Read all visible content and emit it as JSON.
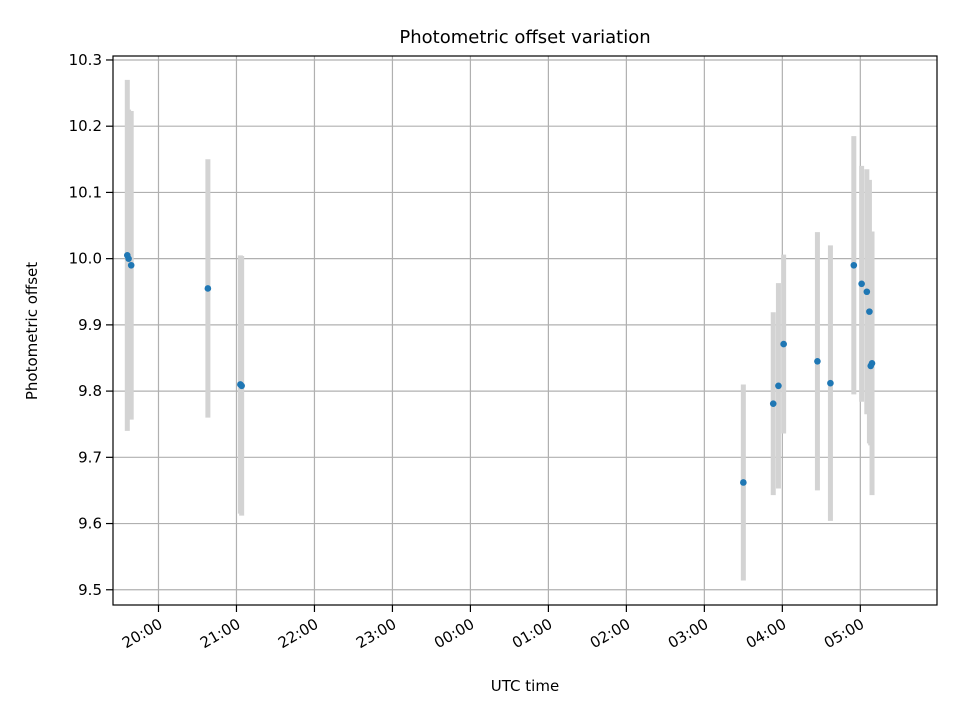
{
  "chart_data": {
    "type": "scatter",
    "title": "Photometric offset variation",
    "xlabel": "UTC time",
    "ylabel": "Photometric offset",
    "x_axis": "time",
    "xlim": [
      "19:25",
      "05:59"
    ],
    "ylim": [
      9.477,
      10.306
    ],
    "x_ticks": [
      "20:00",
      "21:00",
      "22:00",
      "23:00",
      "00:00",
      "01:00",
      "02:00",
      "03:00",
      "04:00",
      "05:00"
    ],
    "y_ticks": [
      9.5,
      9.6,
      9.7,
      9.8,
      9.9,
      10.0,
      10.1,
      10.2,
      10.3
    ],
    "y_tick_labels": [
      "9.5",
      "9.6",
      "9.7",
      "9.8",
      "9.9",
      "10.0",
      "10.1",
      "10.2",
      "10.3"
    ],
    "grid": true,
    "point_color": "#1f77b4",
    "errorbar_color": "#d3d3d3",
    "points": [
      {
        "time": "19:36",
        "y": 10.005,
        "yerr": 0.265
      },
      {
        "time": "19:37",
        "y": 10.0,
        "yerr": 0.225
      },
      {
        "time": "19:39",
        "y": 9.99,
        "yerr": 0.233
      },
      {
        "time": "20:38",
        "y": 9.955,
        "yerr": 0.195
      },
      {
        "time": "21:03",
        "y": 9.81,
        "yerr": 0.195
      },
      {
        "time": "21:04",
        "y": 9.808,
        "yerr": 0.196
      },
      {
        "time": "03:30",
        "y": 9.662,
        "yerr": 0.148
      },
      {
        "time": "03:53",
        "y": 9.781,
        "yerr": 0.138
      },
      {
        "time": "03:57",
        "y": 9.808,
        "yerr": 0.155
      },
      {
        "time": "04:01",
        "y": 9.871,
        "yerr": 0.135
      },
      {
        "time": "04:27",
        "y": 9.845,
        "yerr": 0.195
      },
      {
        "time": "04:37",
        "y": 9.812,
        "yerr": 0.208
      },
      {
        "time": "04:55",
        "y": 9.99,
        "yerr": 0.195
      },
      {
        "time": "05:01",
        "y": 9.962,
        "yerr": 0.178
      },
      {
        "time": "05:05",
        "y": 9.95,
        "yerr": 0.185
      },
      {
        "time": "05:07",
        "y": 9.92,
        "yerr": 0.199
      },
      {
        "time": "05:08",
        "y": 9.838,
        "yerr": 0.12
      },
      {
        "time": "05:09",
        "y": 9.842,
        "yerr": 0.199
      }
    ]
  }
}
